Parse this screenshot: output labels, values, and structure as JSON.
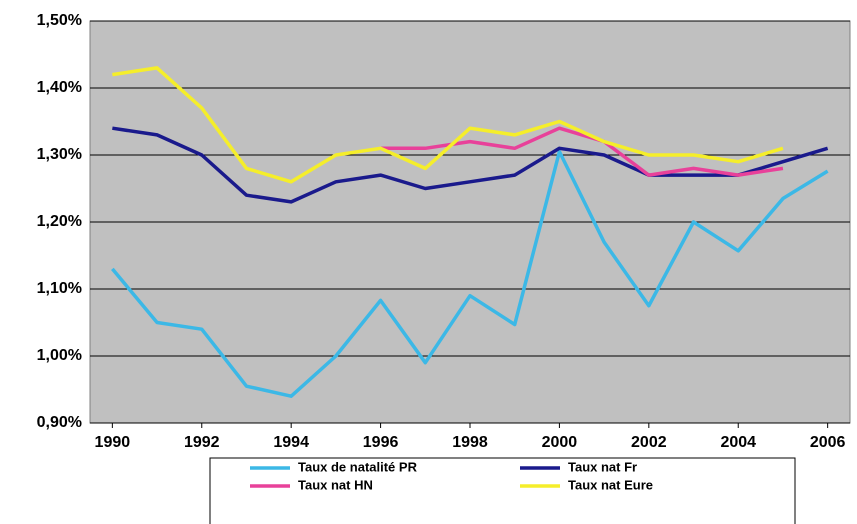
{
  "chart_data": {
    "type": "line",
    "x": [
      1990,
      1991,
      1992,
      1993,
      1994,
      1995,
      1996,
      1997,
      1998,
      1999,
      2000,
      2001,
      2002,
      2003,
      2004,
      2005,
      2006
    ],
    "xlim": [
      1989.5,
      2006.5
    ],
    "xticks": [
      1990,
      1992,
      1994,
      1996,
      1998,
      2000,
      2002,
      2004,
      2006
    ],
    "ylim": [
      0.9,
      1.5
    ],
    "yticks": [
      {
        "value": 0.9,
        "label": "0,90%"
      },
      {
        "value": 1.0,
        "label": "1,00%"
      },
      {
        "value": 1.1,
        "label": "1,10%"
      },
      {
        "value": 1.2,
        "label": "1,20%"
      },
      {
        "value": 1.3,
        "label": "1,30%"
      },
      {
        "value": 1.4,
        "label": "1,40%"
      },
      {
        "value": 1.5,
        "label": "1,50%"
      }
    ],
    "grid": true,
    "series": [
      {
        "name": "Taux de natalité PR",
        "color": "#3cb8e6",
        "values": [
          1.13,
          1.05,
          1.04,
          0.955,
          0.94,
          1.0,
          1.083,
          0.99,
          1.09,
          1.047,
          1.305,
          1.17,
          1.075,
          1.2,
          1.157,
          1.235,
          1.276
        ]
      },
      {
        "name": "Taux nat Fr",
        "color": "#1a1a8c",
        "values": [
          1.34,
          1.33,
          1.3,
          1.24,
          1.23,
          1.26,
          1.27,
          1.25,
          1.26,
          1.27,
          1.31,
          1.3,
          1.27,
          1.27,
          1.27,
          1.29,
          1.31
        ]
      },
      {
        "name": "Taux nat HN",
        "color": "#e8419a",
        "values": [
          null,
          null,
          null,
          null,
          null,
          null,
          1.31,
          1.31,
          1.32,
          1.31,
          1.34,
          1.32,
          1.27,
          1.28,
          1.27,
          1.28,
          null
        ]
      },
      {
        "name": "Taux nat Eure",
        "color": "#f5ee2a",
        "values": [
          1.42,
          1.43,
          1.37,
          1.28,
          1.26,
          1.3,
          1.31,
          1.28,
          1.34,
          1.33,
          1.35,
          1.32,
          1.3,
          1.3,
          1.29,
          1.31,
          null
        ]
      }
    ]
  }
}
